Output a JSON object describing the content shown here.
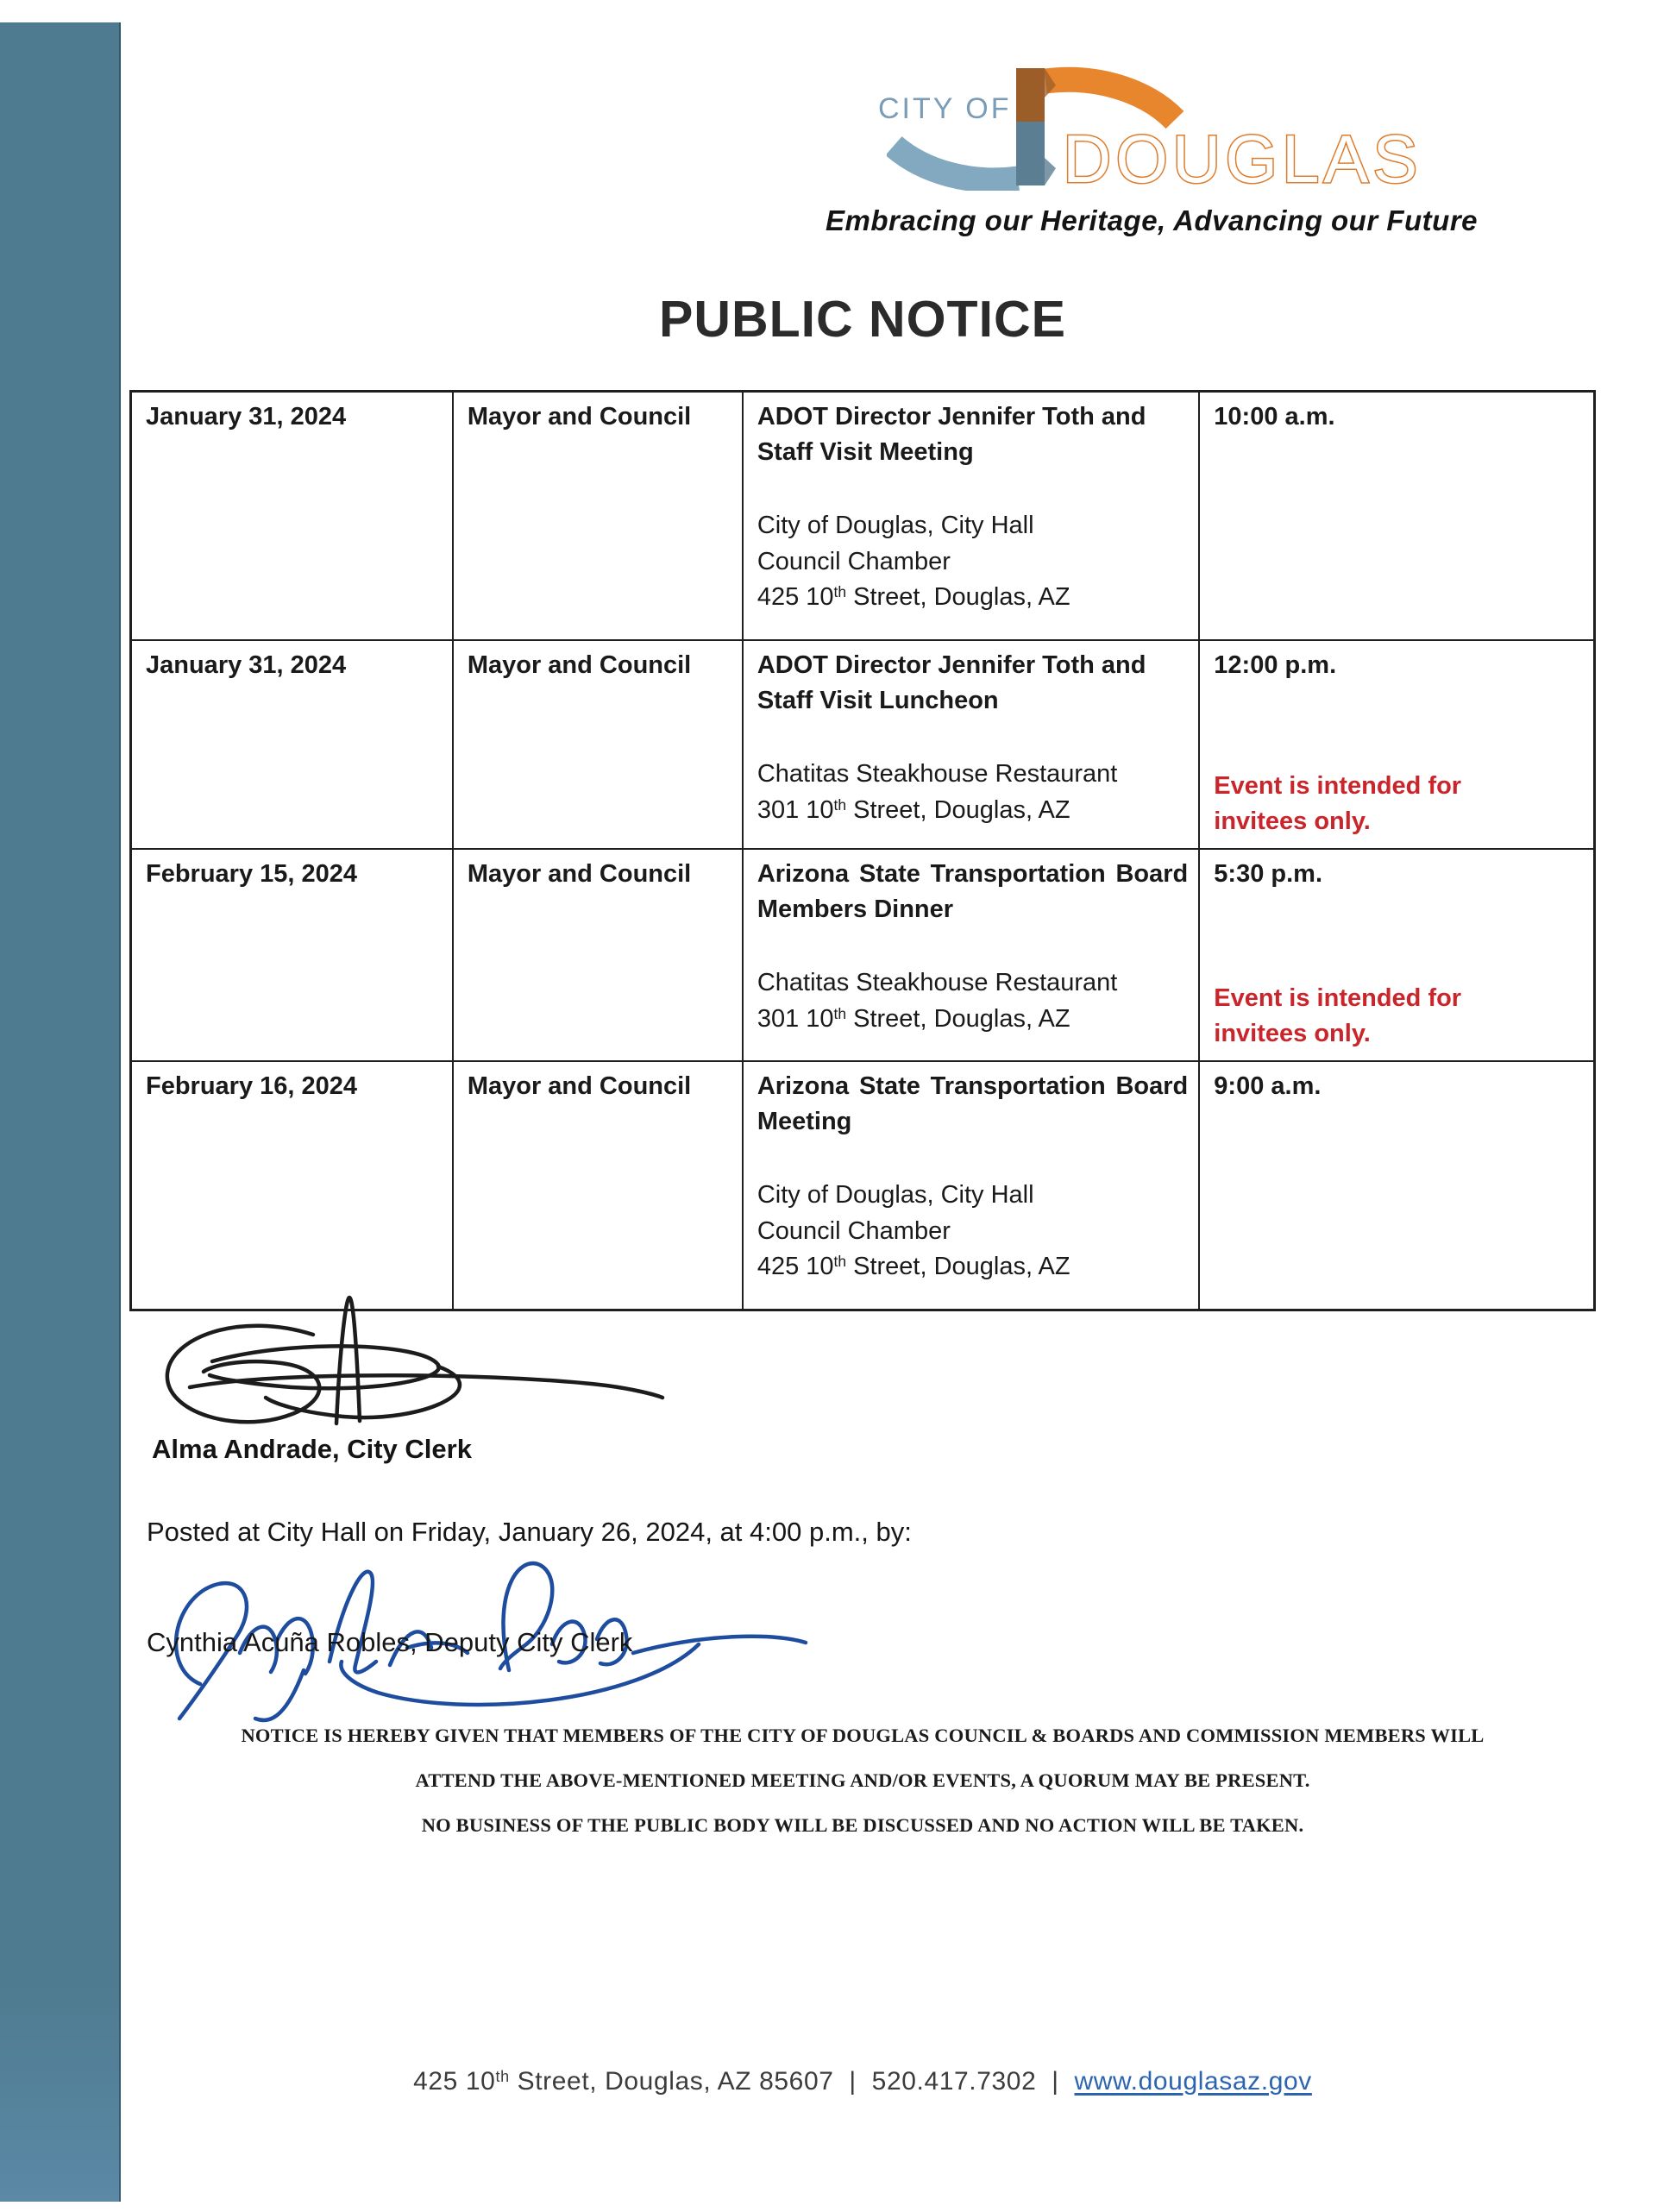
{
  "colors": {
    "strip": "#4e7b90",
    "strip_bottom": "#5b89a6",
    "logo_city_of": "#7a9cb5",
    "logo_outline": "#de7c2b",
    "logo_arc_orange": "#e8862d",
    "logo_arc_blue": "#82a9c0",
    "logo_bar_brown": "#9c5e28",
    "logo_bar_slate": "#5c7e93",
    "note_red": "#c9252b",
    "link_blue": "#2d64b0",
    "ink_black": "#1c1c1c",
    "ink_blue": "#1e4da0",
    "border": "#1f1f1f",
    "text": "#1a1a1a"
  },
  "header": {
    "logo": {
      "city_of": "CITY OF",
      "name": "DOUGLAS",
      "tagline": "Embracing our Heritage, Advancing our Future"
    },
    "title": "PUBLIC NOTICE"
  },
  "table": {
    "rows": [
      {
        "date": "January 31, 2024",
        "body": "Mayor and Council",
        "title": "ADOT Director Jennifer Toth and Staff Visit Meeting",
        "location": [
          [
            {
              "t": "City of Douglas, City Hall"
            }
          ],
          [
            {
              "t": "Council Chamber"
            }
          ],
          [
            {
              "t": "425 10"
            },
            {
              "t": "th",
              "sup": true
            },
            {
              "t": " Street, Douglas, AZ"
            }
          ]
        ],
        "time": "10:00 a.m.",
        "note": []
      },
      {
        "date": "January 31, 2024",
        "body": "Mayor and Council",
        "title": "ADOT Director Jennifer Toth and Staff Visit Luncheon",
        "location": [
          [
            {
              "t": "Chatitas Steakhouse Restaurant"
            }
          ],
          [
            {
              "t": "301 10"
            },
            {
              "t": "th",
              "sup": true
            },
            {
              "t": " Street, Douglas, AZ"
            }
          ]
        ],
        "time": "12:00 p.m.",
        "note": [
          "Event is intended for",
          "invitees only."
        ]
      },
      {
        "date": "February 15, 2024",
        "body": "Mayor and Council",
        "title": "Arizona State Transportation Board Members Dinner",
        "location": [
          [
            {
              "t": "Chatitas Steakhouse Restaurant"
            }
          ],
          [
            {
              "t": "301 10"
            },
            {
              "t": "th",
              "sup": true
            },
            {
              "t": " Street, Douglas, AZ"
            }
          ]
        ],
        "time": "5:30 p.m.",
        "note": [
          "Event is intended for",
          "invitees only."
        ]
      },
      {
        "date": "February 16, 2024",
        "body": "Mayor and Council",
        "title": "Arizona State Transportation Board Meeting",
        "location": [
          [
            {
              "t": "City of Douglas, City Hall"
            }
          ],
          [
            {
              "t": "Council Chamber"
            }
          ],
          [
            {
              "t": "425 10"
            },
            {
              "t": "th",
              "sup": true
            },
            {
              "t": " Street, Douglas, AZ"
            }
          ]
        ],
        "time": "9:00 a.m.",
        "note": []
      }
    ]
  },
  "signatures": {
    "clerk_name": "Alma Andrade, City Clerk",
    "posted_line": "Posted at City Hall on Friday, January 26, 2024, at 4:00 p.m., by:",
    "deputy_name": "Cynthia Acuña Robles, Deputy City Clerk"
  },
  "legal_notice": {
    "lines": [
      "NOTICE IS HEREBY GIVEN THAT MEMBERS OF THE CITY OF DOUGLAS COUNCIL & BOARDS AND COMMISSION MEMBERS WILL",
      "ATTEND THE ABOVE-MENTIONED MEETING AND/OR EVENTS, A QUORUM MAY BE PRESENT.",
      "NO BUSINESS OF THE PUBLIC BODY WILL BE DISCUSSED AND NO ACTION WILL BE TAKEN."
    ]
  },
  "footer": {
    "segments": [
      {
        "t": "425 10"
      },
      {
        "t": "th",
        "sup": true
      },
      {
        "t": " Street, Douglas, AZ 85607"
      },
      {
        "t": "  |  "
      },
      {
        "t": "520.417.7302"
      },
      {
        "t": "  |  "
      },
      {
        "t": "www.douglasaz.gov",
        "link": true
      }
    ]
  }
}
